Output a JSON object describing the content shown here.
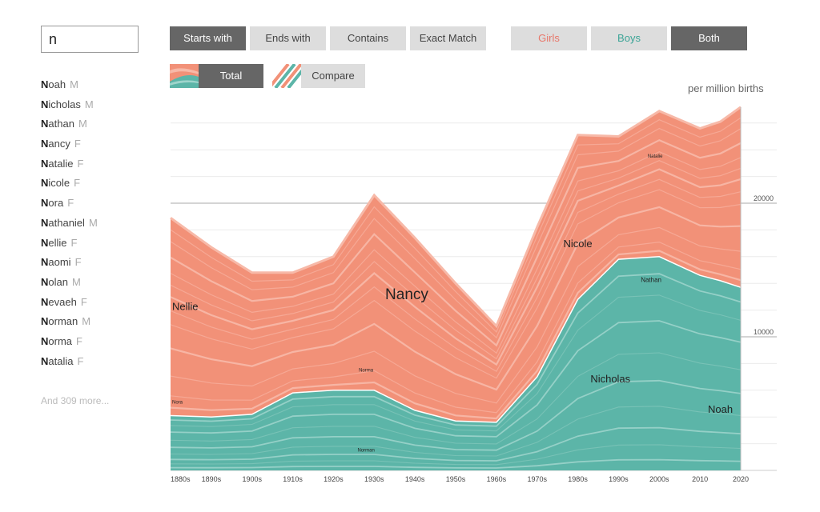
{
  "search": {
    "value": "n"
  },
  "filters": {
    "starts_with": "Starts with",
    "ends_with": "Ends with",
    "contains": "Contains",
    "exact_match": "Exact Match",
    "girls": "Girls",
    "boys": "Boys",
    "both": "Both",
    "selected_match": "Starts with",
    "selected_sex": "Both"
  },
  "modes": {
    "total": "Total",
    "compare": "Compare",
    "selected": "Total"
  },
  "names": [
    {
      "initial": "N",
      "rest": "oah",
      "sex": "M"
    },
    {
      "initial": "N",
      "rest": "icholas",
      "sex": "M"
    },
    {
      "initial": "N",
      "rest": "athan",
      "sex": "M"
    },
    {
      "initial": "N",
      "rest": "ancy",
      "sex": "F"
    },
    {
      "initial": "N",
      "rest": "atalie",
      "sex": "F"
    },
    {
      "initial": "N",
      "rest": "icole",
      "sex": "F"
    },
    {
      "initial": "N",
      "rest": "ora",
      "sex": "F"
    },
    {
      "initial": "N",
      "rest": "athaniel",
      "sex": "M"
    },
    {
      "initial": "N",
      "rest": "ellie",
      "sex": "F"
    },
    {
      "initial": "N",
      "rest": "aomi",
      "sex": "F"
    },
    {
      "initial": "N",
      "rest": "olan",
      "sex": "M"
    },
    {
      "initial": "N",
      "rest": "evaeh",
      "sex": "F"
    },
    {
      "initial": "N",
      "rest": "orman",
      "sex": "M"
    },
    {
      "initial": "N",
      "rest": "orma",
      "sex": "F"
    },
    {
      "initial": "N",
      "rest": "atalia",
      "sex": "F"
    }
  ],
  "more": "And 309 more...",
  "colors": {
    "girls": "#f29178",
    "girls_light": "#f7b9a8",
    "boys": "#5cb5a8",
    "boys_light": "#9fd5cc",
    "dark_button": "#666666",
    "light_button": "#dddddd"
  },
  "chart_data": {
    "type": "area",
    "stacked": true,
    "unit_label": "per million births",
    "x": [
      "1880s",
      "1890s",
      "1900s",
      "1910s",
      "1920s",
      "1930s",
      "1940s",
      "1950s",
      "1960s",
      "1970s",
      "1980s",
      "1990s",
      "2000s",
      "2010",
      2020
    ],
    "x_values": [
      1880,
      1890,
      1900,
      1910,
      1920,
      1930,
      1940,
      1950,
      1960,
      1970,
      1980,
      1990,
      2000,
      2010,
      2020
    ],
    "x_tick_labels": [
      "1880s",
      "1890s",
      "1900s",
      "1910s",
      "1920s",
      "1930s",
      "1940s",
      "1950s",
      "1960s",
      "1970s",
      "1980s",
      "1990s",
      "2000s",
      "2010",
      "2020"
    ],
    "y_ticks": [
      10000,
      20000
    ],
    "ylim": [
      0,
      27000
    ],
    "total_points": [
      [
        1880,
        18900
      ],
      [
        1890,
        16700
      ],
      [
        1900,
        14800
      ],
      [
        1910,
        14800
      ],
      [
        1920,
        16000
      ],
      [
        1930,
        20600
      ],
      [
        1940,
        17400
      ],
      [
        1950,
        14000
      ],
      [
        1960,
        10800
      ],
      [
        1970,
        18200
      ],
      [
        1980,
        25100
      ],
      [
        1990,
        25000
      ],
      [
        2000,
        26900
      ],
      [
        2010,
        25600
      ],
      [
        2015,
        26100
      ],
      [
        2020,
        27200
      ]
    ],
    "girls_top_points": [
      [
        1880,
        18900
      ],
      [
        1890,
        16700
      ],
      [
        1900,
        14800
      ],
      [
        1910,
        14800
      ],
      [
        1920,
        16000
      ],
      [
        1930,
        20600
      ],
      [
        1940,
        17400
      ],
      [
        1950,
        14000
      ],
      [
        1960,
        10800
      ],
      [
        1970,
        18200
      ],
      [
        1980,
        25100
      ],
      [
        1990,
        25000
      ],
      [
        2000,
        26900
      ],
      [
        2010,
        25600
      ],
      [
        2015,
        26100
      ],
      [
        2020,
        27200
      ]
    ],
    "boys_top_points": [
      [
        1880,
        4100
      ],
      [
        1890,
        4000
      ],
      [
        1900,
        4200
      ],
      [
        1910,
        5800
      ],
      [
        1920,
        6000
      ],
      [
        1930,
        6000
      ],
      [
        1940,
        4500
      ],
      [
        1950,
        3700
      ],
      [
        1960,
        3600
      ],
      [
        1970,
        7000
      ],
      [
        1980,
        12800
      ],
      [
        1990,
        15800
      ],
      [
        2000,
        16000
      ],
      [
        2010,
        14600
      ],
      [
        2015,
        14200
      ],
      [
        2020,
        13700
      ]
    ],
    "labels": [
      {
        "text": "Nancy",
        "x": 1938,
        "y": 12800,
        "size": "large"
      },
      {
        "text": "Nicole",
        "x": 1980,
        "y": 16700,
        "size": "medium"
      },
      {
        "text": "Nicholas",
        "x": 1988,
        "y": 6600,
        "size": "medium"
      },
      {
        "text": "Noah",
        "x": 2015,
        "y": 4300,
        "size": "medium"
      },
      {
        "text": "Nellie",
        "x": 1880,
        "y": 12000,
        "size": "medium"
      },
      {
        "text": "Nathan",
        "x": 1998,
        "y": 14100,
        "size": "small"
      },
      {
        "text": "Natalie",
        "x": 1999,
        "y": 23400,
        "size": "tiny"
      },
      {
        "text": "Norma",
        "x": 1928,
        "y": 7400,
        "size": "tiny"
      },
      {
        "text": "Nora",
        "x": 1880,
        "y": 5000,
        "size": "tiny"
      },
      {
        "text": "Norman",
        "x": 1928,
        "y": 1400,
        "size": "tiny"
      }
    ]
  }
}
